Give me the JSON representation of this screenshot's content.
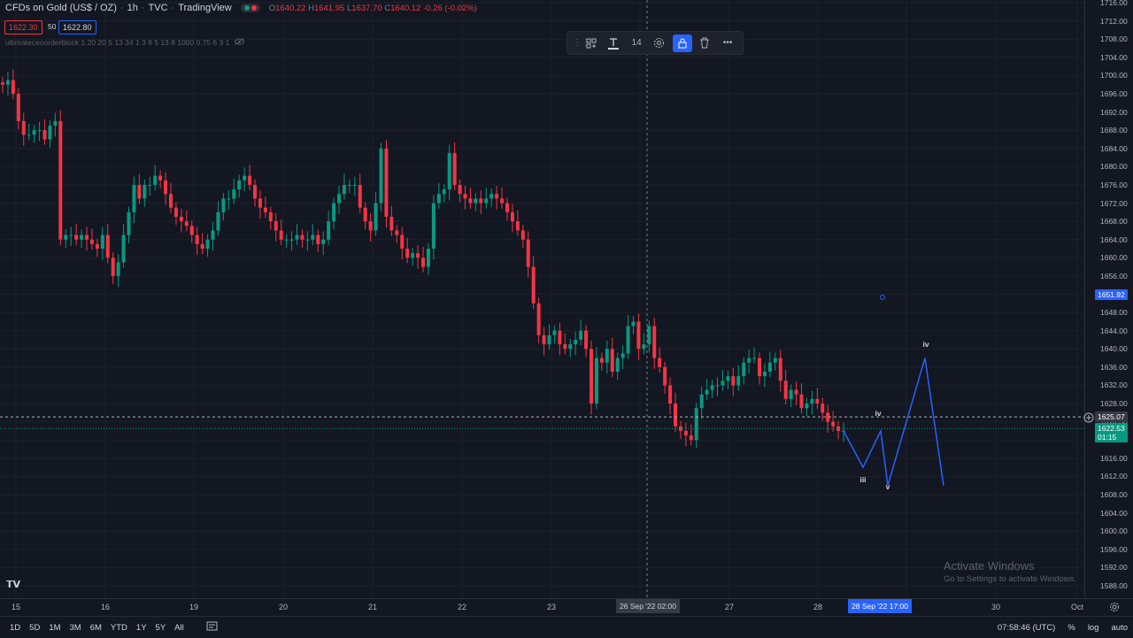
{
  "header": {
    "symbol": "CFDs on Gold (US$ / OZ)",
    "interval": "1h",
    "source": "TVC",
    "provider": "TradingView",
    "ohlc": {
      "o": "1640.22",
      "h": "1641.95",
      "l": "1637.70",
      "c": "1640.12",
      "chg": "-0.26 (-0.02%)"
    },
    "sell_price": "1622.30",
    "spread": "50",
    "buy_price": "1622.80"
  },
  "indicator": {
    "label": "ultimateceoorderblock 1 20 20 5 13 34 1 3 8 5 13 8 1000 0.75 6 3 1"
  },
  "toolbar": {
    "font_size": "14"
  },
  "price_axis": {
    "ticks": [
      "1716.00",
      "1712.00",
      "1708.00",
      "1704.00",
      "1700.00",
      "1696.00",
      "1692.00",
      "1688.00",
      "1684.00",
      "1680.00",
      "1676.00",
      "1672.00",
      "1668.00",
      "1664.00",
      "1660.00",
      "1656.00",
      "1652.00",
      "1648.00",
      "1644.00",
      "1640.00",
      "1636.00",
      "1632.00",
      "1628.00",
      "1624.00",
      "1620.00",
      "1616.00",
      "1612.00",
      "1608.00",
      "1604.00",
      "1600.00",
      "1596.00",
      "1592.00",
      "1588.00"
    ],
    "crosshair_price": "1651.92",
    "hline_price": "1625.07",
    "last_price": "1622.53",
    "countdown": "01:15"
  },
  "time_axis": {
    "labels": [
      "15",
      "16",
      "19",
      "20",
      "21",
      "22",
      "23",
      "26 Sep '22  02:00",
      "27",
      "28",
      "28 Sep '22   17:00",
      "30",
      "Oct"
    ]
  },
  "wave_labels": [
    "iii",
    "iv",
    "v",
    "iv"
  ],
  "bottom_bar": {
    "timeframes": [
      "1D",
      "5D",
      "1M",
      "3M",
      "6M",
      "YTD",
      "1Y",
      "5Y",
      "All"
    ],
    "clock": "07:58:46 (UTC)",
    "pct": "%",
    "log": "log",
    "auto": "auto"
  },
  "watermark": {
    "title": "Activate Windows",
    "subtitle": "Go to Settings to activate Windows."
  },
  "colors": {
    "up": "#089981",
    "down": "#f23645",
    "wave": "#2962ff",
    "bg": "#131722"
  },
  "chart_data": {
    "type": "candlestick",
    "title": "",
    "ylim": [
      1588,
      1716
    ],
    "close_series": [
      1698,
      1699,
      1696,
      1690,
      1687,
      1687,
      1688,
      1688,
      1686,
      1689,
      1690,
      1664,
      1665,
      1665,
      1664,
      1665,
      1664,
      1663,
      1662,
      1665,
      1660,
      1656,
      1659,
      1665,
      1670,
      1676,
      1673,
      1676,
      1676,
      1678,
      1677,
      1674,
      1671,
      1669,
      1668,
      1667,
      1665,
      1663,
      1662,
      1664,
      1666,
      1670,
      1673,
      1673,
      1675,
      1677,
      1678,
      1676,
      1673,
      1671,
      1670,
      1668,
      1666,
      1664,
      1664,
      1664,
      1665,
      1664,
      1664,
      1665,
      1663,
      1664,
      1668,
      1672,
      1674,
      1676,
      1676,
      1676,
      1671,
      1668,
      1666,
      1672,
      1684,
      1669,
      1666,
      1665,
      1662,
      1660,
      1661,
      1660,
      1658,
      1662,
      1672,
      1674,
      1675,
      1683,
      1676,
      1674,
      1673,
      1672,
      1673,
      1672,
      1673,
      1674,
      1673,
      1672,
      1670,
      1668,
      1666,
      1664,
      1658,
      1650,
      1643,
      1641,
      1643,
      1644,
      1641,
      1640,
      1641,
      1642,
      1644,
      1640,
      1628,
      1638,
      1637,
      1640,
      1635,
      1638,
      1639,
      1645,
      1646,
      1640,
      1641,
      1645,
      1638,
      1636,
      1632,
      1628,
      1623,
      1622,
      1621,
      1620,
      1627,
      1630,
      1631,
      1632,
      1632,
      1633,
      1634,
      1632,
      1634,
      1637,
      1638,
      1638,
      1634,
      1635,
      1637,
      1638,
      1633,
      1629,
      1631,
      1630,
      1627,
      1628,
      1629,
      1628,
      1626,
      1624,
      1623,
      1622,
      1622
    ]
  }
}
